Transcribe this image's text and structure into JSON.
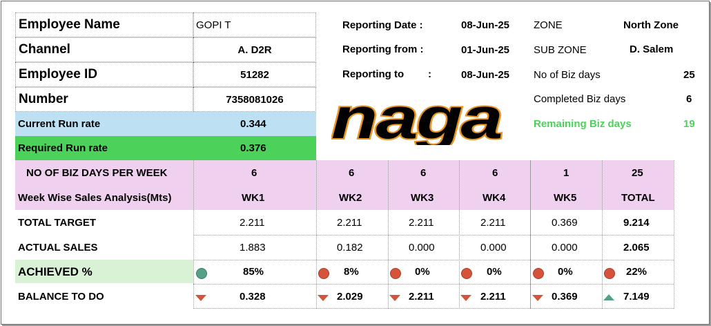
{
  "employee": {
    "name_label": "Employee Name",
    "name_value": "GOPI T",
    "channel_label": "Channel",
    "channel_value": "A. D2R",
    "id_label": "Employee ID",
    "id_value": "51282",
    "number_label": "Number",
    "number_value": "7358081026"
  },
  "run_rates": {
    "current_label": "Current Run rate",
    "current_value": "0.344",
    "required_label": "Required Run rate",
    "required_value": "0.376"
  },
  "reporting": {
    "date_label": "Reporting Date :",
    "date_value": "08-Jun-25",
    "from_label": "Reporting from :",
    "from_value": "01-Jun-25",
    "to_label": "Reporting to",
    "to_colon": ":",
    "to_value": "08-Jun-25"
  },
  "zone": {
    "zone_label": "ZONE",
    "zone_value": "North Zone",
    "sub_zone_label": "SUB ZONE",
    "sub_zone_value": "D. Salem",
    "biz_days_label": "No of Biz days",
    "biz_days_value": "25",
    "completed_label": "Completed Biz days",
    "completed_value": "6",
    "remaining_label": "Remaining Biz days",
    "remaining_value": "19"
  },
  "logo": {
    "text": "naga"
  },
  "table": {
    "days_label": "NO OF BIZ DAYS PER WEEK",
    "days": [
      "6",
      "6",
      "6",
      "6",
      "1",
      "25"
    ],
    "analysis_label": "Week Wise Sales Analysis(Mts)",
    "weeks": [
      "WK1",
      "WK2",
      "WK3",
      "WK4",
      "WK5",
      "TOTAL"
    ],
    "target_label": "TOTAL TARGET",
    "target": [
      "2.211",
      "2.211",
      "2.211",
      "2.211",
      "0.369",
      "9.214"
    ],
    "actual_label": "ACTUAL SALES",
    "actual": [
      "1.883",
      "0.182",
      "0.000",
      "0.000",
      "0.000",
      "2.065"
    ],
    "achieved_label": "ACHIEVED  %",
    "achieved": [
      "85%",
      "8%",
      "0%",
      "0%",
      "0%",
      "22%"
    ],
    "balance_label": "BALANCE TO DO",
    "balance": [
      "0.328",
      "2.029",
      "2.211",
      "2.211",
      "0.369",
      "7.149"
    ]
  },
  "colors": {
    "run_rate_current_bg": "#bde0f3",
    "run_rate_required_bg": "#4cd15a",
    "table_header_bg": "#f0d0ef",
    "achieved_label_bg": "#d9f1d4",
    "remaining_text": "#4cd15a",
    "status_green": "#55a088",
    "status_red": "#d4533a"
  },
  "icons": {
    "achieved": [
      "green-circle",
      "red-circle",
      "red-circle",
      "red-circle",
      "red-circle",
      "red-circle"
    ],
    "balance": [
      "red-down-triangle",
      "red-down-triangle",
      "red-down-triangle",
      "red-down-triangle",
      "red-down-triangle",
      "green-up-triangle"
    ]
  }
}
